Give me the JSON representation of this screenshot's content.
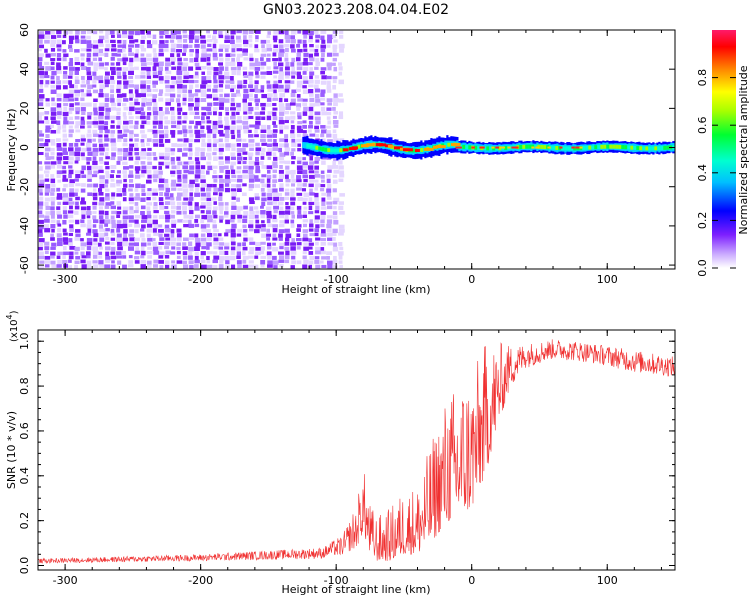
{
  "title": "GN03.2023.208.04.04.E02",
  "chart_data": [
    {
      "type": "heatmap",
      "name": "spectrogram",
      "xlabel": "Height of straight line (km)",
      "ylabel": "Frequency (Hz)",
      "xlim": [
        -320,
        150
      ],
      "ylim": [
        -62,
        60
      ],
      "xticks": [
        -300,
        -200,
        -100,
        0,
        100
      ],
      "yticks": [
        60,
        40,
        20,
        0,
        -20,
        -40,
        -60
      ],
      "noise_region_x": [
        -320,
        -100
      ],
      "signal_band_x": [
        -125,
        150
      ],
      "signal_band_center_hz": 0,
      "colorbar": {
        "label": "Normalized spectral amplitude",
        "range": [
          0.0,
          1.0
        ],
        "ticks": [
          "0.0",
          "0.2",
          "0.4",
          "0.6",
          "0.8"
        ]
      },
      "grid": false
    },
    {
      "type": "line",
      "name": "snr",
      "xlabel": "Height of straight line (km)",
      "ylabel": "SNR (10 * v/v)",
      "multiplier_label": "(x10",
      "multiplier_exponent": "4",
      "xlim": [
        -320,
        150
      ],
      "ylim": [
        -0.02,
        1.05
      ],
      "xticks": [
        -300,
        -200,
        -100,
        0,
        100
      ],
      "yticks": [
        "0.0",
        "0.2",
        "0.4",
        "0.6",
        "0.8",
        "1.0"
      ],
      "color": "#f03030",
      "envelope": {
        "x": [
          -320,
          -200,
          -110,
          -95,
          -85,
          -80,
          -75,
          -70,
          -60,
          -50,
          -40,
          -30,
          -20,
          -10,
          0,
          10,
          20,
          30,
          40,
          60,
          80,
          100,
          120,
          150
        ],
        "low": [
          0.01,
          0.02,
          0.03,
          0.05,
          0.08,
          0.15,
          0.05,
          0.02,
          0.02,
          0.05,
          0.05,
          0.1,
          0.18,
          0.22,
          0.25,
          0.4,
          0.65,
          0.8,
          0.88,
          0.92,
          0.91,
          0.89,
          0.86,
          0.84
        ],
        "high": [
          0.03,
          0.05,
          0.08,
          0.14,
          0.28,
          0.44,
          0.28,
          0.22,
          0.26,
          0.34,
          0.36,
          0.55,
          0.74,
          0.82,
          0.86,
          1.0,
          1.0,
          0.98,
          0.99,
          1.01,
          1.0,
          0.98,
          0.96,
          0.93
        ]
      },
      "grid": false
    }
  ]
}
